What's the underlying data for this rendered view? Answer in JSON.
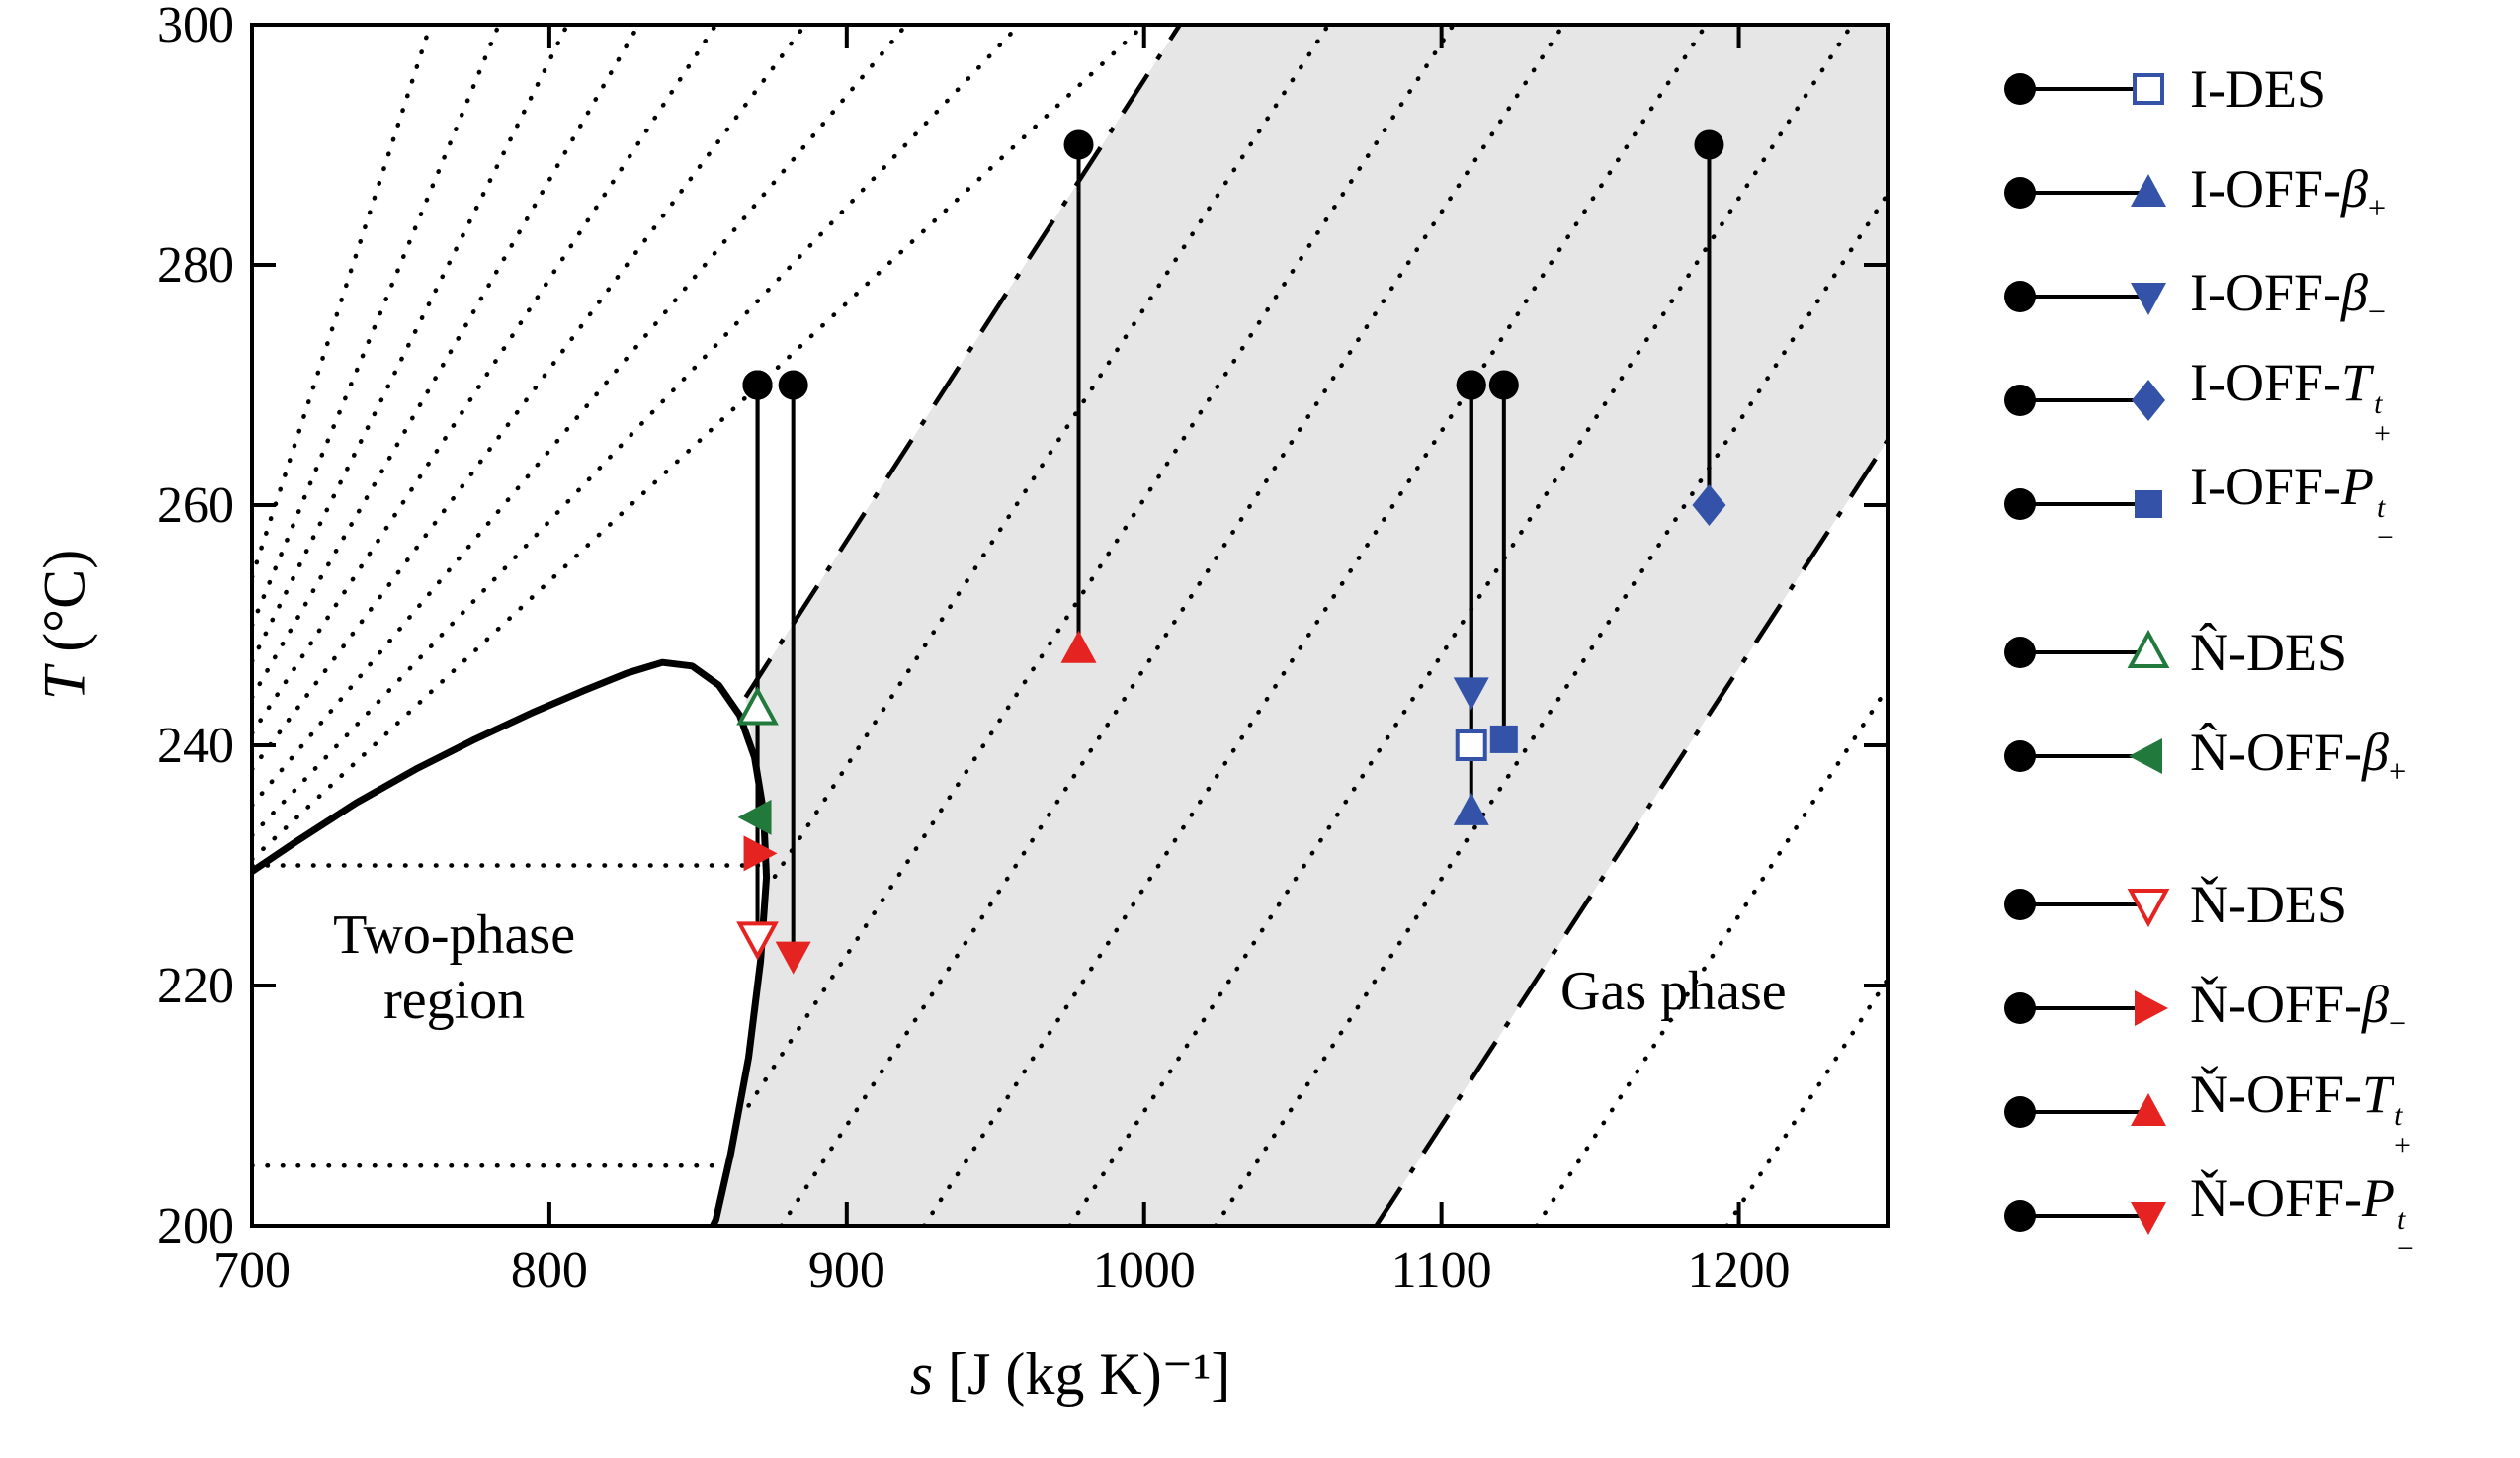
{
  "chart_data": {
    "type": "scatter",
    "xlabel_var": "s",
    "xlabel_rest": " [J (kg K)⁻¹]",
    "ylabel_var": "T",
    "ylabel_rest": " (°C)",
    "xlim": [
      700,
      1250
    ],
    "ylim": [
      200,
      300
    ],
    "x_ticks": [
      700,
      800,
      900,
      1000,
      1100,
      1200
    ],
    "y_ticks": [
      200,
      220,
      240,
      260,
      280,
      300
    ],
    "grid": false,
    "region_labels": [
      {
        "text": "Two-phase\nregion",
        "x": 768,
        "y": 221.5
      },
      {
        "text": "Gas phase",
        "x": 1178,
        "y": 219.5
      }
    ],
    "colors": {
      "blue": "#3453a8",
      "green": "#217a3c",
      "red": "#e52421",
      "band_fill": "#e6e6e6",
      "line": "#000000"
    },
    "saturation_dome": [
      [
        700,
        229.5
      ],
      [
        715,
        232
      ],
      [
        735,
        235.2
      ],
      [
        755,
        238
      ],
      [
        775,
        240.5
      ],
      [
        795,
        242.8
      ],
      [
        812,
        244.6
      ],
      [
        826,
        246
      ],
      [
        838,
        246.9
      ],
      [
        848,
        246.6
      ],
      [
        857,
        245
      ],
      [
        864,
        242.5
      ],
      [
        869,
        239
      ],
      [
        872,
        234.5
      ],
      [
        873,
        229
      ],
      [
        871,
        222
      ],
      [
        867,
        214
      ],
      [
        861,
        206
      ],
      [
        856,
        200.5
      ],
      [
        855,
        200
      ]
    ],
    "shaded_band_polygon": [
      [
        866,
        244
      ],
      [
        869,
        239
      ],
      [
        872,
        234.5
      ],
      [
        873,
        229
      ],
      [
        871,
        222
      ],
      [
        867,
        214
      ],
      [
        861,
        206
      ],
      [
        856,
        200.5
      ],
      [
        855,
        200
      ],
      [
        1078,
        200
      ],
      [
        1250,
        265.4
      ],
      [
        1250,
        300
      ],
      [
        1012,
        300
      ]
    ],
    "dashdot_lines": [
      [
        [
          866,
          244
        ],
        [
          1012,
          300
        ]
      ],
      [
        [
          1078,
          200
        ],
        [
          1250,
          265.4
        ]
      ]
    ],
    "dotted_isolines": [
      [
        [
          700,
          254
        ],
        [
          760,
          300
        ]
      ],
      [
        [
          700,
          250
        ],
        [
          783,
          300
        ]
      ],
      [
        [
          700,
          247
        ],
        [
          806,
          300
        ]
      ],
      [
        [
          700,
          244
        ],
        [
          830,
          300
        ]
      ],
      [
        [
          700,
          241
        ],
        [
          856,
          300
        ]
      ],
      [
        [
          700,
          238
        ],
        [
          886,
          300
        ]
      ],
      [
        [
          700,
          235
        ],
        [
          920,
          300
        ]
      ],
      [
        [
          700,
          232.5
        ],
        [
          958,
          300
        ]
      ],
      [
        [
          700,
          230.5
        ],
        [
          1000,
          300
        ]
      ],
      [
        [
          700,
          230
        ],
        [
          872,
          230
        ]
      ],
      [
        [
          700,
          205
        ],
        [
          859.5,
          205
        ]
      ],
      [
        [
          867,
          210
        ],
        [
          1104,
          300
        ]
      ],
      [
        [
          873,
          228
        ],
        [
          1062,
          300
        ]
      ],
      [
        [
          878,
          200
        ],
        [
          1141,
          300
        ]
      ],
      [
        [
          926,
          200
        ],
        [
          1189,
          300
        ]
      ],
      [
        [
          975,
          200
        ],
        [
          1238,
          300
        ]
      ],
      [
        [
          1024,
          200
        ],
        [
          1250,
          285.9
        ]
      ],
      [
        [
          1132,
          200
        ],
        [
          1250,
          244.8
        ]
      ],
      [
        [
          1196,
          200
        ],
        [
          1250,
          220.5
        ]
      ]
    ],
    "series": [
      {
        "name": "I-DES",
        "color_key": "blue",
        "marker": "square-open",
        "anchor": {
          "s": 1110,
          "T": 270
        },
        "state": {
          "s": 1110,
          "T": 240
        }
      },
      {
        "name": "I-OFF-β₊",
        "color_key": "blue",
        "marker": "tri-up",
        "anchor": {
          "s": 1110,
          "T": 270
        },
        "state": {
          "s": 1110,
          "T": 234.5
        }
      },
      {
        "name": "I-OFF-β₋",
        "color_key": "blue",
        "marker": "tri-down",
        "anchor": {
          "s": 1110,
          "T": 270
        },
        "state": {
          "s": 1110,
          "T": 244.5
        }
      },
      {
        "name": "I-OFF-Tᵗ₊",
        "color_key": "blue",
        "marker": "diamond",
        "anchor": {
          "s": 1190,
          "T": 290
        },
        "state": {
          "s": 1190,
          "T": 260
        }
      },
      {
        "name": "I-OFF-Pᵗ₋",
        "color_key": "blue",
        "marker": "square",
        "anchor": {
          "s": 1121,
          "T": 270
        },
        "state": {
          "s": 1121,
          "T": 240.5
        }
      },
      {
        "name": "N̂-DES",
        "color_key": "green",
        "marker": "tri-up-open",
        "anchor": {
          "s": 870,
          "T": 270
        },
        "state": {
          "s": 870,
          "T": 243
        }
      },
      {
        "name": "N̂-OFF-β₊",
        "color_key": "green",
        "marker": "tri-left",
        "anchor": {
          "s": 870,
          "T": 270
        },
        "state": {
          "s": 870,
          "T": 234
        }
      },
      {
        "name": "Ň-DES",
        "color_key": "red",
        "marker": "tri-down-open",
        "anchor": {
          "s": 870,
          "T": 270
        },
        "state": {
          "s": 870,
          "T": 224
        }
      },
      {
        "name": "Ň-OFF-β₋",
        "color_key": "red",
        "marker": "tri-right",
        "anchor": {
          "s": 870,
          "T": 270
        },
        "state": {
          "s": 870,
          "T": 231
        }
      },
      {
        "name": "Ň-OFF-Tᵗ₊",
        "color_key": "red",
        "marker": "tri-up",
        "anchor": {
          "s": 978,
          "T": 290
        },
        "state": {
          "s": 978,
          "T": 248
        }
      },
      {
        "name": "Ň-OFF-Pᵗ₋",
        "color_key": "red",
        "marker": "tri-down",
        "anchor": {
          "s": 882,
          "T": 270
        },
        "state": {
          "s": 882,
          "T": 222.5
        }
      }
    ]
  },
  "legend": {
    "entries": [
      {
        "label_prefix": "I-DES",
        "label_var": "",
        "label_sup": "",
        "label_sub": "",
        "marker": "square-open",
        "color_key": "blue",
        "group_start": false
      },
      {
        "label_prefix": "I-OFF-",
        "label_var": "β",
        "label_sup": "",
        "label_sub": "+",
        "marker": "tri-up",
        "color_key": "blue",
        "group_start": false
      },
      {
        "label_prefix": "I-OFF-",
        "label_var": "β",
        "label_sup": "",
        "label_sub": "−",
        "marker": "tri-down",
        "color_key": "blue",
        "group_start": false
      },
      {
        "label_prefix": "I-OFF-",
        "label_var": "T",
        "label_sup": "t",
        "label_sub": "+",
        "marker": "diamond",
        "color_key": "blue",
        "group_start": false
      },
      {
        "label_prefix": "I-OFF-",
        "label_var": "P",
        "label_sup": "t",
        "label_sub": "−",
        "marker": "square",
        "color_key": "blue",
        "group_start": false
      },
      {
        "label_prefix": "N̂-DES",
        "label_var": "",
        "label_sup": "",
        "label_sub": "",
        "marker": "tri-up-open",
        "color_key": "green",
        "group_start": true
      },
      {
        "label_prefix": "N̂-OFF-",
        "label_var": "β",
        "label_sup": "",
        "label_sub": "+",
        "marker": "tri-left",
        "color_key": "green",
        "group_start": false
      },
      {
        "label_prefix": "Ň-DES",
        "label_var": "",
        "label_sup": "",
        "label_sub": "",
        "marker": "tri-down-open",
        "color_key": "red",
        "group_start": true
      },
      {
        "label_prefix": "Ň-OFF-",
        "label_var": "β",
        "label_sup": "",
        "label_sub": "−",
        "marker": "tri-right",
        "color_key": "red",
        "group_start": false
      },
      {
        "label_prefix": "Ň-OFF-",
        "label_var": "T",
        "label_sup": "t",
        "label_sub": "+",
        "marker": "tri-up",
        "color_key": "red",
        "group_start": false
      },
      {
        "label_prefix": "Ň-OFF-",
        "label_var": "P",
        "label_sup": "t",
        "label_sub": "−",
        "marker": "tri-down",
        "color_key": "red",
        "group_start": false
      }
    ]
  }
}
